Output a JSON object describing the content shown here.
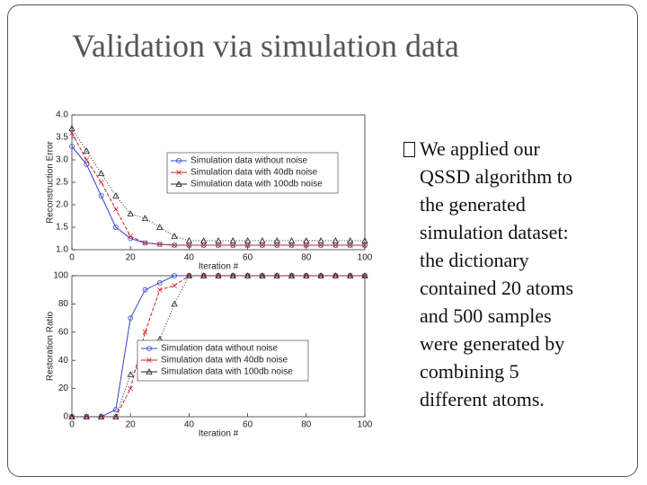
{
  "title": "Validation via simulation data",
  "bullet": [
    "We applied our",
    "QSSD algorithm to",
    "the generated",
    "simulation dataset:",
    "the dictionary",
    "contained 20 atoms",
    "and 500 samples",
    "were generated by",
    "combining 5",
    "different atoms."
  ],
  "chart_data": [
    {
      "type": "line",
      "ylabel": "Reconstruction Error",
      "xlabel": "Iteration #",
      "legend": "upper right",
      "x": [
        0,
        5,
        10,
        15,
        20,
        25,
        30,
        35,
        40,
        45,
        50,
        55,
        60,
        65,
        70,
        75,
        80,
        85,
        90,
        95,
        100
      ],
      "xlim": [
        0,
        100
      ],
      "xticks": [
        0,
        20,
        40,
        60,
        80,
        100
      ],
      "ylim": [
        1,
        4
      ],
      "yticks": [
        {
          "value": 1,
          "label": "1.0"
        },
        1.5,
        {
          "value": 2,
          "label": "2.0"
        },
        2.5,
        {
          "value": 3,
          "label": "3.0"
        },
        3.5,
        {
          "value": 4,
          "label": "4.0"
        }
      ],
      "series": [
        {
          "name": "Simulation data without noise",
          "color": "#3344cc",
          "marker": "circle",
          "values": [
            3.3,
            2.9,
            2.2,
            1.5,
            1.25,
            1.15,
            1.12,
            1.1,
            1.1,
            1.1,
            1.1,
            1.1,
            1.1,
            1.1,
            1.1,
            1.1,
            1.1,
            1.1,
            1.1,
            1.1,
            1.1
          ]
        },
        {
          "name": "Simulation data with 40db noise",
          "color": "#cc2222",
          "marker": "x",
          "values": [
            3.6,
            3.0,
            2.5,
            1.9,
            1.3,
            1.15,
            1.12,
            1.1,
            1.1,
            1.1,
            1.1,
            1.1,
            1.1,
            1.1,
            1.1,
            1.1,
            1.1,
            1.1,
            1.1,
            1.1,
            1.1
          ]
        },
        {
          "name": "Simulation data with 100db noise",
          "color": "#222222",
          "marker": "triangle",
          "values": [
            3.7,
            3.2,
            2.7,
            2.2,
            1.8,
            1.7,
            1.5,
            1.3,
            1.2,
            1.2,
            1.2,
            1.2,
            1.2,
            1.2,
            1.2,
            1.2,
            1.2,
            1.2,
            1.2,
            1.2,
            1.2
          ]
        }
      ]
    },
    {
      "type": "line",
      "ylabel": "Restoration Ratio",
      "xlabel": "Iteration #",
      "legend": "lower center",
      "x": [
        0,
        5,
        10,
        15,
        20,
        25,
        30,
        35,
        40,
        45,
        50,
        55,
        60,
        65,
        70,
        75,
        80,
        85,
        90,
        95,
        100
      ],
      "xlim": [
        0,
        100
      ],
      "xticks": [
        0,
        20,
        40,
        60,
        80,
        100
      ],
      "ylim": [
        0,
        100
      ],
      "yticks": [
        0,
        20,
        40,
        60,
        80,
        100
      ],
      "series": [
        {
          "name": "Simulation data without noise",
          "color": "#3344cc",
          "marker": "circle",
          "values": [
            0,
            0,
            0,
            5,
            70,
            90,
            95,
            100,
            100,
            100,
            100,
            100,
            100,
            100,
            100,
            100,
            100,
            100,
            100,
            100,
            100
          ]
        },
        {
          "name": "Simulation data with 40db noise",
          "color": "#cc2222",
          "marker": "x",
          "values": [
            0,
            0,
            0,
            0,
            20,
            60,
            90,
            93,
            100,
            100,
            100,
            100,
            100,
            100,
            100,
            100,
            100,
            100,
            100,
            100,
            100
          ]
        },
        {
          "name": "Simulation data with 100db noise",
          "color": "#222222",
          "marker": "triangle",
          "values": [
            0,
            0,
            0,
            0,
            30,
            40,
            55,
            80,
            100,
            100,
            100,
            100,
            100,
            100,
            100,
            100,
            100,
            100,
            100,
            100,
            100
          ]
        }
      ]
    }
  ]
}
